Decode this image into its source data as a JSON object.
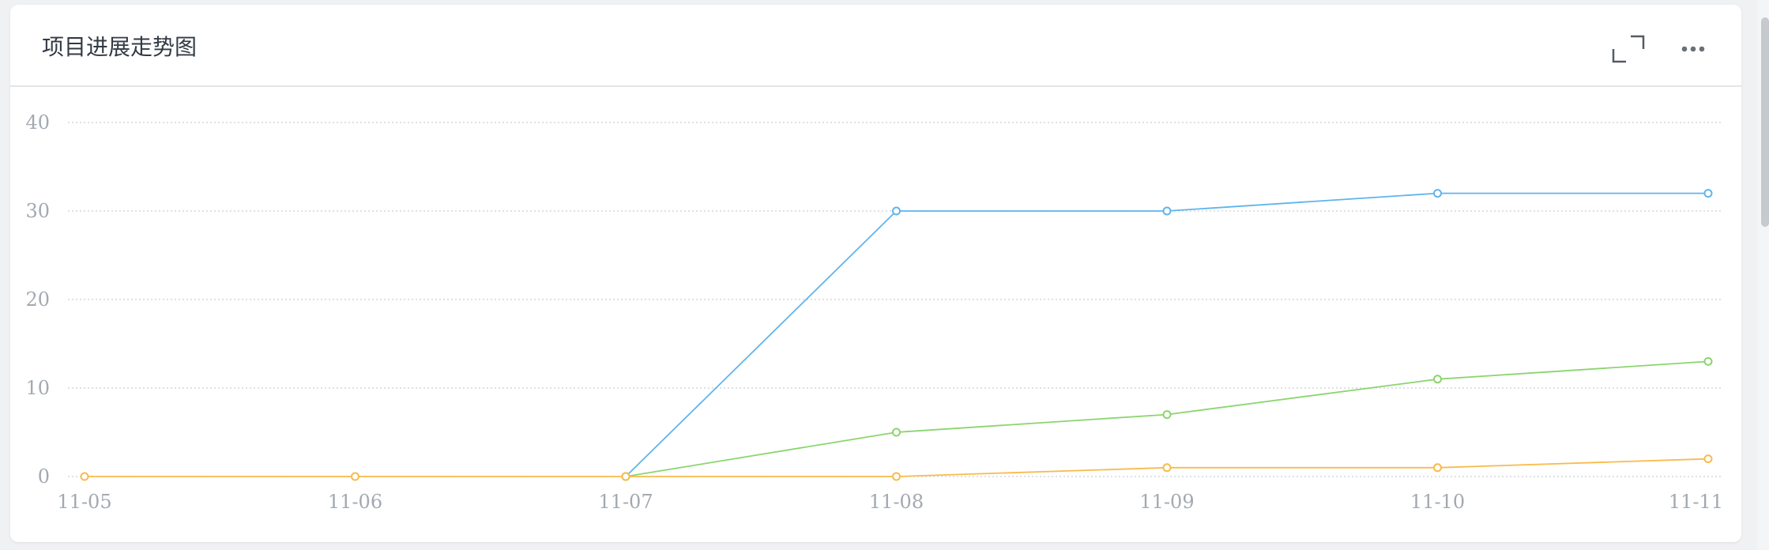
{
  "card": {
    "title": "项目进展走势图",
    "expand_icon": "expand-icon",
    "more_icon": "more-horizontal-icon"
  },
  "chart_data": {
    "type": "line",
    "title": "项目进展走势图",
    "categories": [
      "11-05",
      "11-06",
      "11-07",
      "11-08",
      "11-09",
      "11-10",
      "11-11"
    ],
    "ylim": [
      0,
      40
    ],
    "yticks": [
      0,
      10,
      20,
      30,
      40
    ],
    "grid": true,
    "legend": "none",
    "series": [
      {
        "color": "#5fb4ed",
        "values": [
          null,
          null,
          0,
          30,
          30,
          32,
          32
        ]
      },
      {
        "color": "#8bd56e",
        "values": [
          null,
          null,
          0,
          5,
          7,
          11,
          13
        ]
      },
      {
        "color": "#f8bb4c",
        "values": [
          0,
          0,
          0,
          0,
          1,
          1,
          2
        ]
      }
    ]
  }
}
